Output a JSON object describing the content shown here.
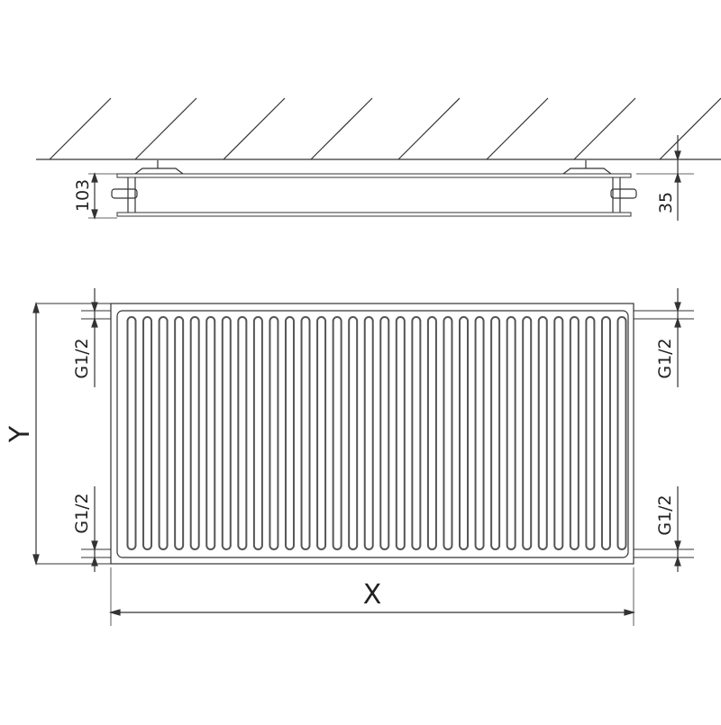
{
  "labels": {
    "depth": "103",
    "wall_distance": "35",
    "conn_top_left": "G1/2",
    "conn_bottom_left": "G1/2",
    "conn_top_right": "G1/2",
    "conn_bottom_right": "G1/2",
    "height": "Y",
    "width": "X"
  },
  "colors": {
    "line": "#333333",
    "fin": "#555555"
  },
  "fin_count": 32
}
